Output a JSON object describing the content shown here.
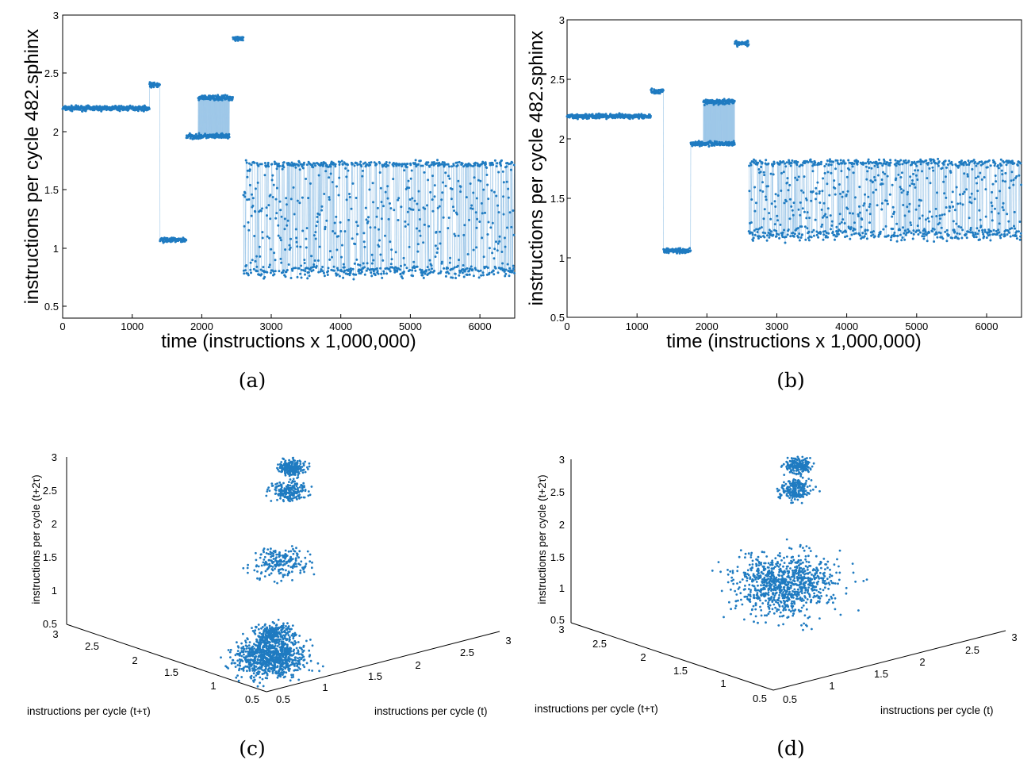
{
  "colors": {
    "marker": "#1f7bc1",
    "line": "#9cc6e8",
    "axis": "#000000"
  },
  "captions": [
    "(a)",
    "(b)",
    "(c)",
    "(d)"
  ],
  "chart_data": [
    {
      "id": "a",
      "type": "scatter",
      "title": "",
      "xlabel": "time (instructions x 1,000,000)",
      "ylabel": "instructions per cycle 482.sphinx",
      "xlim": [
        0,
        6500
      ],
      "ylim": [
        0.4,
        3
      ],
      "xticks": [
        0,
        1000,
        2000,
        3000,
        4000,
        5000,
        6000
      ],
      "yticks": [
        0.5,
        1,
        1.5,
        2,
        2.5,
        3
      ],
      "ytick_labels": [
        "0.5",
        "1",
        "1.5",
        "2",
        "2.5",
        "3"
      ],
      "series": [
        {
          "name": "IPC trace",
          "segments": [
            {
              "x0": 0,
              "x1": 1250,
              "level": 2.2
            },
            {
              "x0": 1250,
              "x1": 1400,
              "level": 2.4
            },
            {
              "x0": 1400,
              "x1": 1780,
              "level": 1.07
            },
            {
              "x0": 1780,
              "x1": 2400,
              "level": 1.96
            },
            {
              "x0": 1950,
              "x1": 2450,
              "level": 2.29
            },
            {
              "x0": 2450,
              "x1": 2600,
              "level": 2.8
            },
            {
              "x0": 2600,
              "x1": 6500,
              "band_upper": 1.72,
              "band_lower": 0.8
            }
          ]
        }
      ]
    },
    {
      "id": "b",
      "type": "scatter",
      "title": "",
      "xlabel": "time (instructions x 1,000,000)",
      "ylabel": "instructions per cycle 482.sphinx",
      "xlim": [
        0,
        6500
      ],
      "ylim": [
        0.5,
        3
      ],
      "xticks": [
        0,
        1000,
        2000,
        3000,
        4000,
        5000,
        6000
      ],
      "yticks": [
        0.5,
        1,
        1.5,
        2,
        2.5,
        3
      ],
      "ytick_labels": [
        "0.5",
        "1",
        "1.5",
        "2",
        "2.5",
        "3"
      ],
      "series": [
        {
          "name": "IPC trace",
          "segments": [
            {
              "x0": 0,
              "x1": 1200,
              "level": 2.19
            },
            {
              "x0": 1200,
              "x1": 1380,
              "level": 2.4
            },
            {
              "x0": 1380,
              "x1": 1770,
              "level": 1.06
            },
            {
              "x0": 1770,
              "x1": 2400,
              "level": 1.96
            },
            {
              "x0": 1950,
              "x1": 2400,
              "level": 2.31
            },
            {
              "x0": 2400,
              "x1": 2600,
              "level": 2.8
            },
            {
              "x0": 2600,
              "x1": 6500,
              "band_upper": 1.8,
              "band_lower": 1.2
            }
          ]
        }
      ]
    },
    {
      "id": "c",
      "type": "scatter",
      "projection": "3d",
      "xlabel": "instructions per cycle (t)",
      "ylabel": "instructions per cycle (t+τ)",
      "zlabel": "instructions per cycle (t+2τ)",
      "xlim": [
        0.5,
        3
      ],
      "ylim": [
        0.5,
        3
      ],
      "zlim": [
        0.5,
        3
      ],
      "xtick_labels": [
        "0.5",
        "1",
        "1.5",
        "2",
        "2.5",
        "3"
      ],
      "ytick_labels": [
        "0.5",
        "1",
        "1.5",
        "2",
        "2.5",
        "3"
      ],
      "ztick_labels": [
        "0.5",
        "1",
        "1.5",
        "2",
        "2.5",
        "3"
      ],
      "clusters": [
        {
          "center": [
            0.8,
            0.8,
            0.8
          ],
          "spread": 0.2
        },
        {
          "center": [
            1.6,
            1.6,
            1.6
          ],
          "spread": 0.15
        },
        {
          "center": [
            2.2,
            2.2,
            2.2
          ],
          "spread": 0.1
        },
        {
          "center": [
            2.4,
            2.4,
            2.4
          ],
          "spread": 0.08
        },
        {
          "center": [
            1.0,
            1.0,
            1.0
          ],
          "spread": 0.1
        }
      ]
    },
    {
      "id": "d",
      "type": "scatter",
      "projection": "3d",
      "xlabel": "instructions per cycle (t)",
      "ylabel": "instructions per cycle (t+τ)",
      "zlabel": "instructions per cycle (t+2τ)",
      "xlim": [
        0.5,
        3
      ],
      "ylim": [
        0.5,
        3
      ],
      "zlim": [
        0.5,
        3
      ],
      "xtick_labels": [
        "0.5",
        "1",
        "1.5",
        "2",
        "2.5",
        "3"
      ],
      "ytick_labels": [
        "0.5",
        "1",
        "1.5",
        "2",
        "2.5",
        "3"
      ],
      "ztick_labels": [
        "0.5",
        "1",
        "1.5",
        "2",
        "2.5",
        "3"
      ],
      "clusters": [
        {
          "center": [
            1.4,
            1.4,
            1.4
          ],
          "spread": 0.3
        },
        {
          "center": [
            2.2,
            2.2,
            2.2
          ],
          "spread": 0.1
        },
        {
          "center": [
            2.4,
            2.4,
            2.4
          ],
          "spread": 0.08
        }
      ]
    }
  ]
}
